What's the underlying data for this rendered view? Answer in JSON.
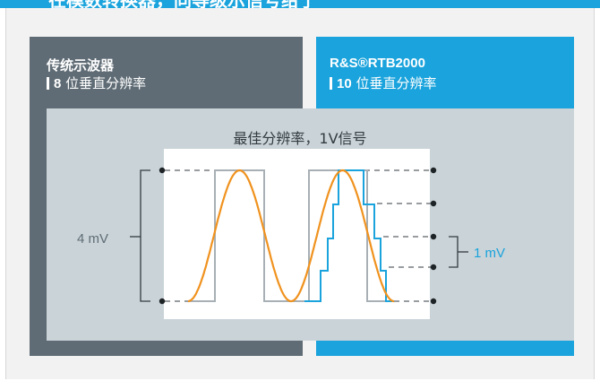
{
  "header": {
    "title": "在模数转换器，同等级示信号给了"
  },
  "left_panel": {
    "title": "传统示波器",
    "subtitle_number": "8",
    "subtitle_text": "位垂直分辨率"
  },
  "right_panel": {
    "title": "R&S®RTB2000",
    "subtitle_number": "10",
    "subtitle_text": "位垂直分辨率"
  },
  "diagram": {
    "caption": "最佳分辨率，1V信号",
    "left_span_label": "4 mV",
    "right_span_label": "1 mV"
  },
  "colors": {
    "header_blue": "#1aa3dc",
    "left_panel": "#5f6c75",
    "right_panel": "#1aa3dc",
    "overlay": "#c9d3d8",
    "sine": "#f0921e",
    "coarse_step": "#a8b0b5",
    "fine_step": "#1aa3dc"
  },
  "icons": [
    "bullet-bar-icon",
    "dot-marker-icon",
    "bracket-icon"
  ]
}
